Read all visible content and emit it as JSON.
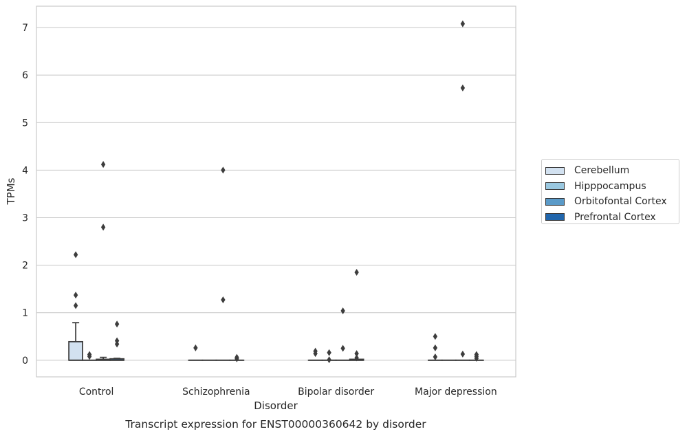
{
  "chart_data": {
    "type": "box",
    "title": "",
    "caption": "Transcript expression for ENST00000360642 by disorder",
    "xlabel": "Disorder",
    "ylabel": "TPMs",
    "ylim": [
      -0.35,
      7.45
    ],
    "yticks": [
      "0",
      "1",
      "2",
      "3",
      "4",
      "5",
      "6",
      "7"
    ],
    "grid": "horizontal",
    "legend_position": "right",
    "categories": [
      "Control",
      "Schizophrenia",
      "Bipolar disorder",
      "Major depression"
    ],
    "series": [
      {
        "name": "Cerebellum",
        "color": "#d2e1f0",
        "boxes": [
          {
            "q1": 0,
            "median": 0,
            "q3": 0.39,
            "whisker_low": 0,
            "whisker_high": 0.79,
            "outliers": [
              1.15,
              1.37,
              2.22
            ]
          },
          {
            "q1": 0,
            "median": 0,
            "q3": 0,
            "whisker_low": 0,
            "whisker_high": 0,
            "outliers": [
              0.26
            ]
          },
          {
            "q1": 0,
            "median": 0,
            "q3": 0,
            "whisker_low": 0,
            "whisker_high": 0,
            "outliers": [
              0.14,
              0.19
            ]
          },
          {
            "q1": 0,
            "median": 0,
            "q3": 0,
            "whisker_low": 0,
            "whisker_high": 0,
            "outliers": [
              0.07,
              0.26,
              0.5
            ]
          }
        ]
      },
      {
        "name": "Hipppocampus",
        "color": "#9ac8e0",
        "boxes": [
          {
            "q1": 0,
            "median": 0,
            "q3": 0,
            "whisker_low": 0,
            "whisker_high": 0,
            "outliers": [
              0.08,
              0.12
            ]
          },
          {
            "q1": 0,
            "median": 0,
            "q3": 0,
            "whisker_low": 0,
            "whisker_high": 0,
            "outliers": []
          },
          {
            "q1": 0,
            "median": 0,
            "q3": 0,
            "whisker_low": 0,
            "whisker_high": 0,
            "outliers": [
              0.01,
              0.16
            ]
          },
          {
            "q1": 0,
            "median": 0,
            "q3": 0,
            "whisker_low": 0,
            "whisker_high": 0,
            "outliers": []
          }
        ]
      },
      {
        "name": "Orbitofontal Cortex",
        "color": "#5a9ac8",
        "boxes": [
          {
            "q1": 0,
            "median": 0,
            "q3": 0.02,
            "whisker_low": 0,
            "whisker_high": 0.06,
            "outliers": [
              2.8,
              4.12
            ]
          },
          {
            "q1": 0,
            "median": 0,
            "q3": 0,
            "whisker_low": 0,
            "whisker_high": 0,
            "outliers": [
              1.27,
              4.0
            ]
          },
          {
            "q1": 0,
            "median": 0,
            "q3": 0,
            "whisker_low": 0,
            "whisker_high": 0,
            "outliers": [
              0.25,
              1.04
            ]
          },
          {
            "q1": 0,
            "median": 0,
            "q3": 0,
            "whisker_low": 0,
            "whisker_high": 0,
            "outliers": [
              0.13,
              5.73,
              7.08
            ]
          }
        ]
      },
      {
        "name": "Prefrontal Cortex",
        "color": "#2166ac",
        "boxes": [
          {
            "q1": 0,
            "median": 0,
            "q3": 0.03,
            "whisker_low": 0,
            "whisker_high": 0.04,
            "outliers": [
              0.34,
              0.41,
              0.76
            ]
          },
          {
            "q1": 0,
            "median": 0,
            "q3": 0,
            "whisker_low": 0,
            "whisker_high": 0,
            "outliers": [
              0.03,
              0.06
            ]
          },
          {
            "q1": 0,
            "median": 0,
            "q3": 0.02,
            "whisker_low": 0,
            "whisker_high": 0.02,
            "outliers": [
              0.05,
              0.14,
              1.85
            ]
          },
          {
            "q1": 0,
            "median": 0,
            "q3": 0,
            "whisker_low": 0,
            "whisker_high": 0,
            "outliers": [
              0.04,
              0.08,
              0.12
            ]
          }
        ]
      }
    ]
  }
}
